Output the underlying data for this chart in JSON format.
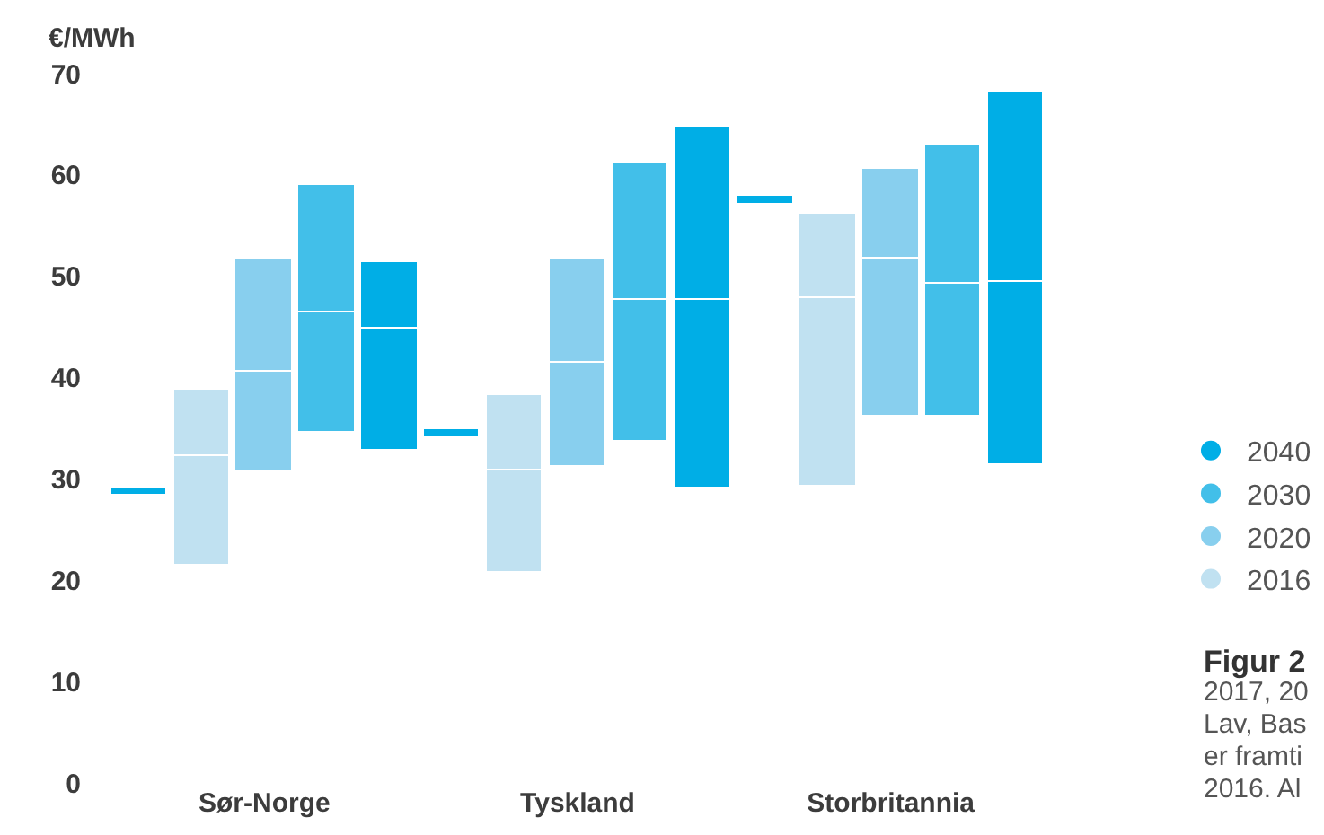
{
  "chart_data": {
    "type": "bar",
    "ylabel": "€/MWh",
    "categories": [
      null,
      null,
      "Sør-Norge",
      null,
      null,
      null,
      null,
      "Tyskland",
      null,
      null,
      null,
      null,
      "Storbritannia",
      null,
      null
    ],
    "series": [
      {
        "color": "#00aee6",
        "base": [
          28.3,
          null,
          null,
          null,
          null,
          34.1,
          null,
          null,
          null,
          null,
          57.1,
          null,
          null,
          null,
          null
        ],
        "values": [
          0.8,
          null,
          null,
          null,
          null,
          0.8,
          null,
          null,
          null,
          null,
          0.8,
          null,
          null,
          null,
          null
        ]
      },
      {
        "name": "2016",
        "color": "#c0e1f1",
        "base": [
          null,
          21.4,
          null,
          null,
          null,
          null,
          20.7,
          null,
          null,
          null,
          null,
          29.2,
          null,
          null,
          null
        ],
        "values": [
          null,
          10.9,
          null,
          null,
          null,
          null,
          10.1,
          null,
          null,
          null,
          null,
          18.6,
          null,
          null,
          null
        ]
      },
      {
        "color": "#c0e1f1",
        "base": [
          null,
          32.3,
          null,
          null,
          null,
          null,
          30.8,
          null,
          null,
          null,
          null,
          47.8,
          null,
          null,
          null
        ],
        "values": [
          null,
          6.5,
          null,
          null,
          null,
          null,
          7.4,
          null,
          null,
          null,
          null,
          8.3,
          null,
          null,
          null
        ]
      },
      {
        "name": "2020",
        "color": "#88cfee",
        "base": [
          null,
          null,
          30.6,
          null,
          null,
          null,
          null,
          31.2,
          null,
          null,
          null,
          null,
          36.2,
          null,
          null
        ],
        "values": [
          null,
          null,
          10.0,
          null,
          null,
          null,
          null,
          10.3,
          null,
          null,
          null,
          null,
          15.6,
          null,
          null
        ]
      },
      {
        "color": "#88cfee",
        "base": [
          null,
          null,
          40.6,
          null,
          null,
          null,
          null,
          41.5,
          null,
          null,
          null,
          null,
          51.8,
          null,
          null
        ],
        "values": [
          null,
          null,
          11.1,
          null,
          null,
          null,
          null,
          10.2,
          null,
          null,
          null,
          null,
          8.8,
          null,
          null
        ]
      },
      {
        "name": "2030",
        "color": "#42bfe9",
        "base": [
          null,
          null,
          null,
          34.5,
          null,
          null,
          null,
          null,
          33.7,
          null,
          null,
          null,
          null,
          36.2,
          null
        ],
        "values": [
          null,
          null,
          null,
          12.0,
          null,
          null,
          null,
          null,
          14.0,
          null,
          null,
          null,
          null,
          13.1,
          null
        ]
      },
      {
        "color": "#42bfe9",
        "base": [
          null,
          null,
          null,
          46.5,
          null,
          null,
          null,
          null,
          47.7,
          null,
          null,
          null,
          null,
          49.3,
          null
        ],
        "values": [
          null,
          null,
          null,
          12.6,
          null,
          null,
          null,
          null,
          13.4,
          null,
          null,
          null,
          null,
          13.6,
          null
        ]
      },
      {
        "name": "2040",
        "color": "#00aee6",
        "base": [
          null,
          null,
          null,
          null,
          32.7,
          null,
          null,
          null,
          null,
          29.1,
          null,
          null,
          null,
          null,
          31.3
        ],
        "values": [
          null,
          null,
          null,
          null,
          12.1,
          null,
          null,
          null,
          null,
          18.6,
          null,
          null,
          null,
          null,
          18.1
        ]
      },
      {
        "color": "#00aee6",
        "base": [
          null,
          null,
          null,
          null,
          44.8,
          null,
          null,
          null,
          null,
          47.7,
          null,
          null,
          null,
          null,
          49.4
        ],
        "values": [
          null,
          null,
          null,
          null,
          6.6,
          null,
          null,
          null,
          null,
          16.9,
          null,
          null,
          null,
          null,
          18.9
        ]
      }
    ],
    "ylim": [
      0,
      70
    ],
    "yticks": [
      0,
      10,
      20,
      30,
      40,
      50,
      60,
      70
    ],
    "legend": "right",
    "annotations": [
      "Figur 2",
      "2017, 20",
      "Lav, Bas",
      "er framti",
      "2016. Al"
    ]
  }
}
